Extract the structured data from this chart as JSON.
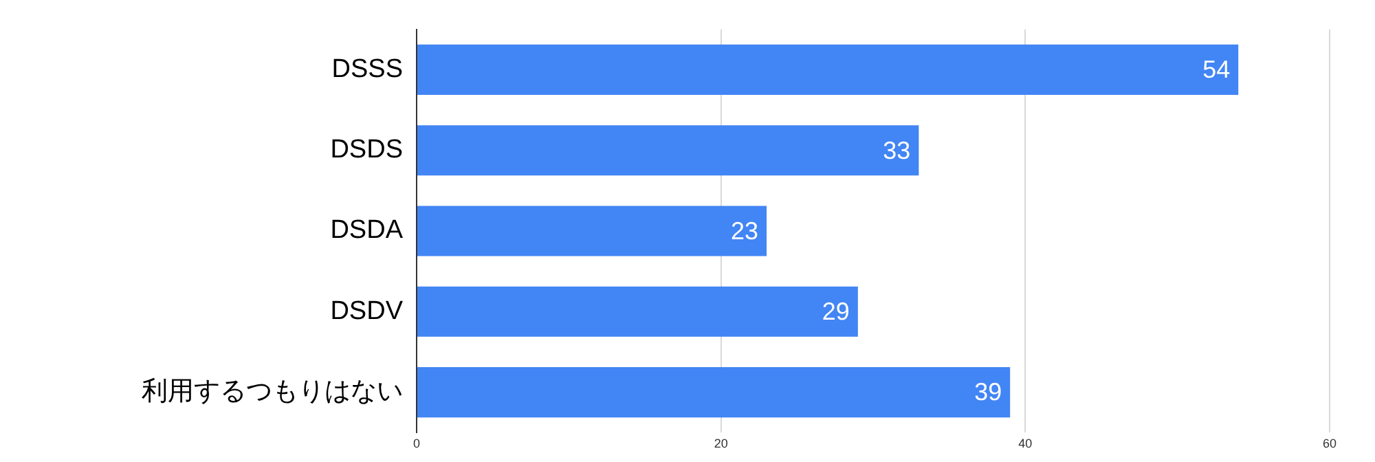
{
  "chart_data": {
    "type": "bar",
    "orientation": "horizontal",
    "categories": [
      "DSSS",
      "DSDS",
      "DSDA",
      "DSDV",
      "利用するつもりはない"
    ],
    "values": [
      54,
      33,
      23,
      29,
      39
    ],
    "color": "#4285f4",
    "xlim": [
      0,
      60
    ],
    "xticks": [
      0,
      20,
      40,
      60
    ],
    "grid": "x",
    "data_labels": true,
    "legend": false
  }
}
